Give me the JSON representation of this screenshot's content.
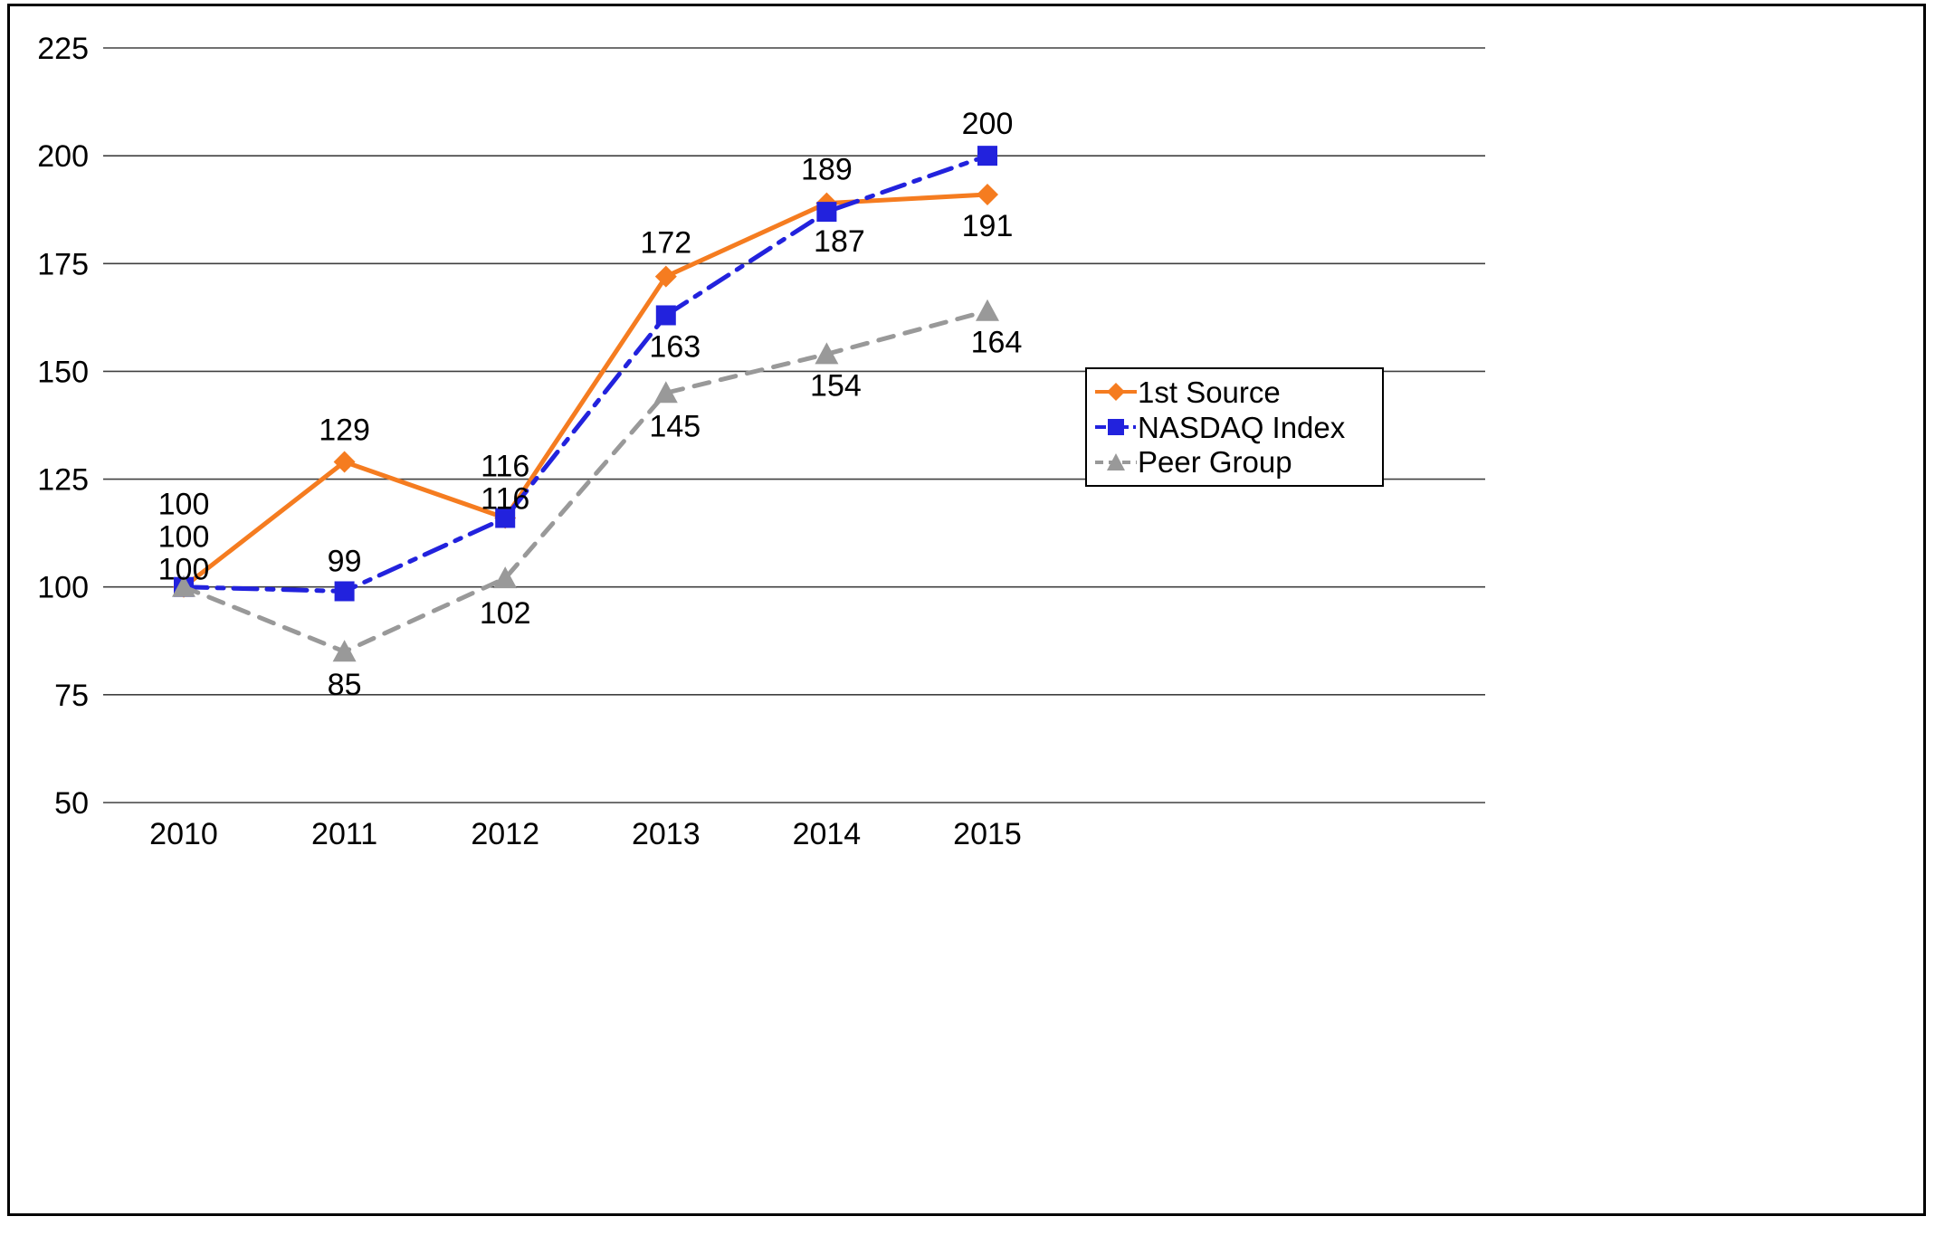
{
  "chart_data": {
    "type": "line",
    "title": "",
    "categories": [
      "2010",
      "2011",
      "2012",
      "2013",
      "2014",
      "2015"
    ],
    "series": [
      {
        "name": "1st Source",
        "values": [
          100,
          129,
          116,
          172,
          189,
          191
        ],
        "color": "#F57C20",
        "marker": "diamond",
        "dash": "solid",
        "label_dx": [
          0,
          0,
          0,
          0,
          0,
          0
        ],
        "label_dy": [
          -80,
          -24,
          -46,
          -26,
          -26,
          46
        ]
      },
      {
        "name": "NASDAQ Index",
        "values": [
          100,
          99,
          116,
          163,
          187,
          200
        ],
        "color": "#2222DD",
        "marker": "square",
        "dash": "dashdot",
        "label_dx": [
          0,
          0,
          0,
          10,
          14,
          0
        ],
        "label_dy": [
          -44,
          -22,
          -10,
          46,
          44,
          -24
        ]
      },
      {
        "name": "Peer Group",
        "values": [
          100,
          85,
          102,
          145,
          154,
          164
        ],
        "color": "#999999",
        "marker": "triangle",
        "dash": "dashed",
        "label_dx": [
          0,
          0,
          0,
          10,
          10,
          10
        ],
        "label_dy": [
          -8,
          48,
          50,
          48,
          46,
          46
        ]
      }
    ],
    "ylim": [
      50,
      225
    ],
    "yticks": [
      50,
      75,
      100,
      125,
      150,
      175,
      200,
      225
    ],
    "grid": "horizontal",
    "legend_position": "right"
  },
  "colors": {
    "grid": "#404040",
    "text": "#000000",
    "background": "#FFFFFF",
    "frame_border": "#000000"
  }
}
